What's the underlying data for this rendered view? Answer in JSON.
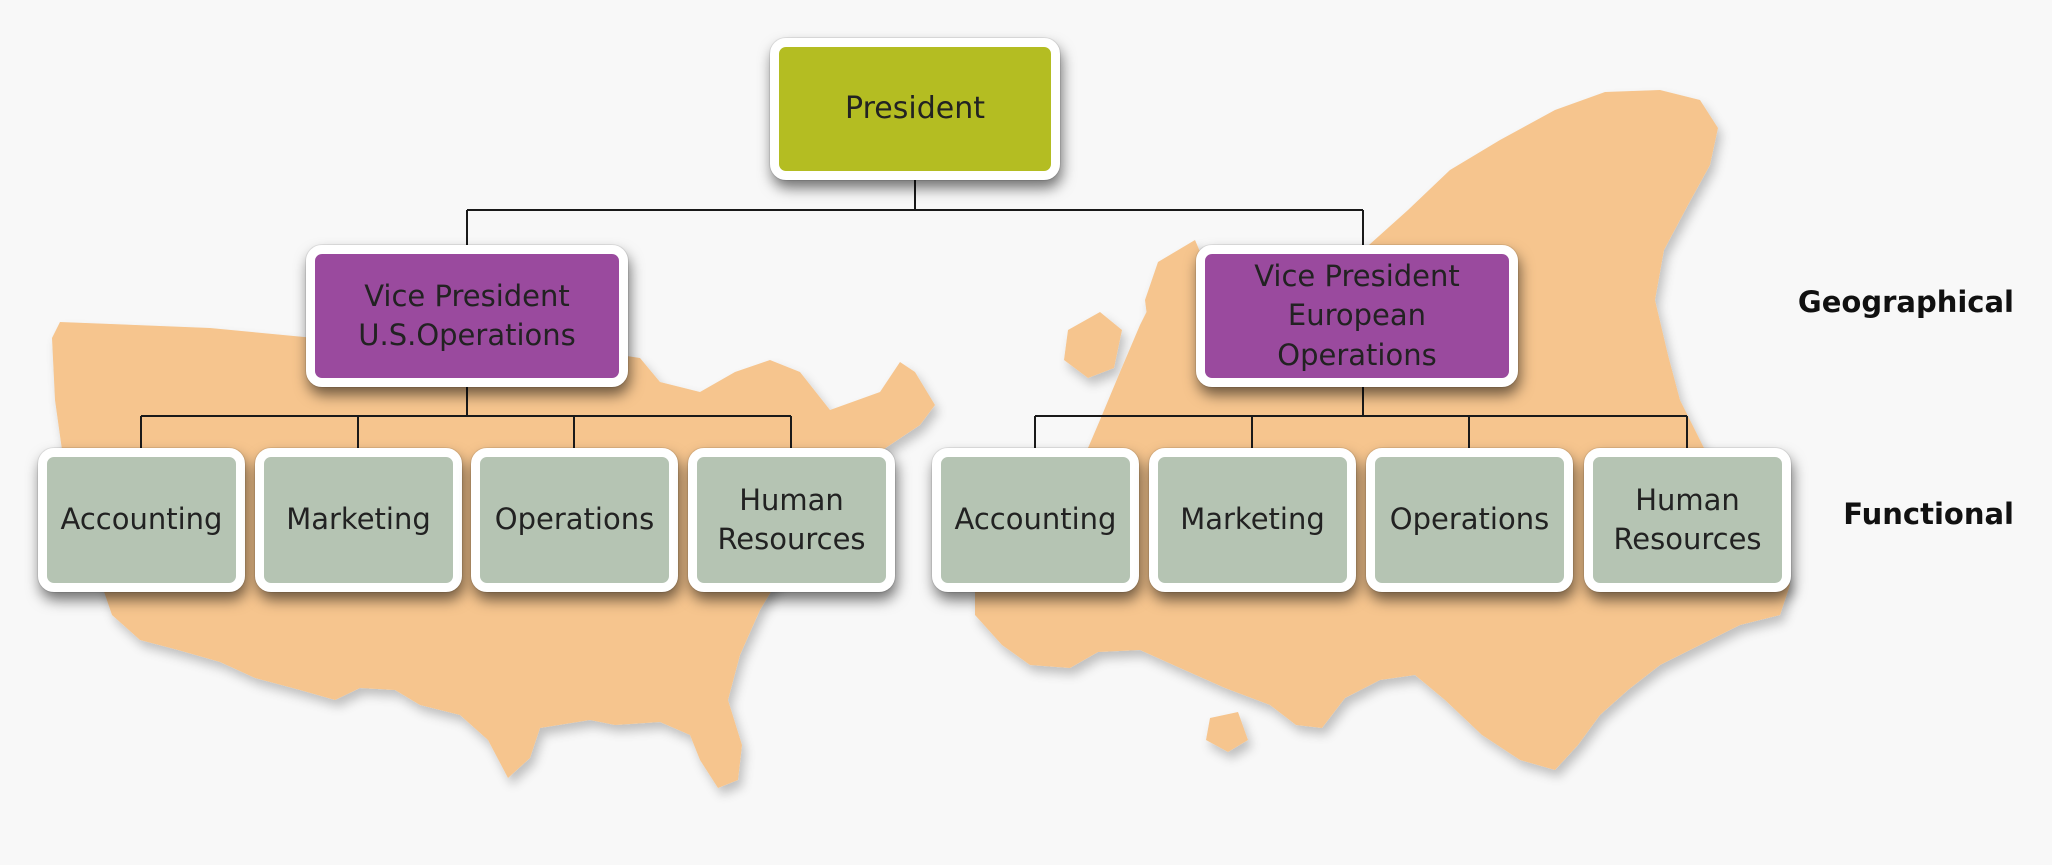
{
  "colors": {
    "president_fill": "#b4bd22",
    "vice_president_fill": "#9a4a9e",
    "functional_fill": "#b5c4b3",
    "map_fill": "#f6c58e",
    "connector": "#1a1a1a"
  },
  "president": {
    "label": "President"
  },
  "vice_presidents": [
    {
      "label": "Vice President\nU.S.Operations",
      "region_map": "united-states"
    },
    {
      "label": "Vice President\nEuropean Operations",
      "region_map": "europe"
    }
  ],
  "functional_units": {
    "us": [
      {
        "label": "Accounting"
      },
      {
        "label": "Marketing"
      },
      {
        "label": "Operations"
      },
      {
        "label": "Human\nResources"
      }
    ],
    "europe": [
      {
        "label": "Accounting"
      },
      {
        "label": "Marketing"
      },
      {
        "label": "Operations"
      },
      {
        "label": "Human\nResources"
      }
    ]
  },
  "levels": {
    "geographical": "Geographical",
    "functional": "Functional"
  }
}
